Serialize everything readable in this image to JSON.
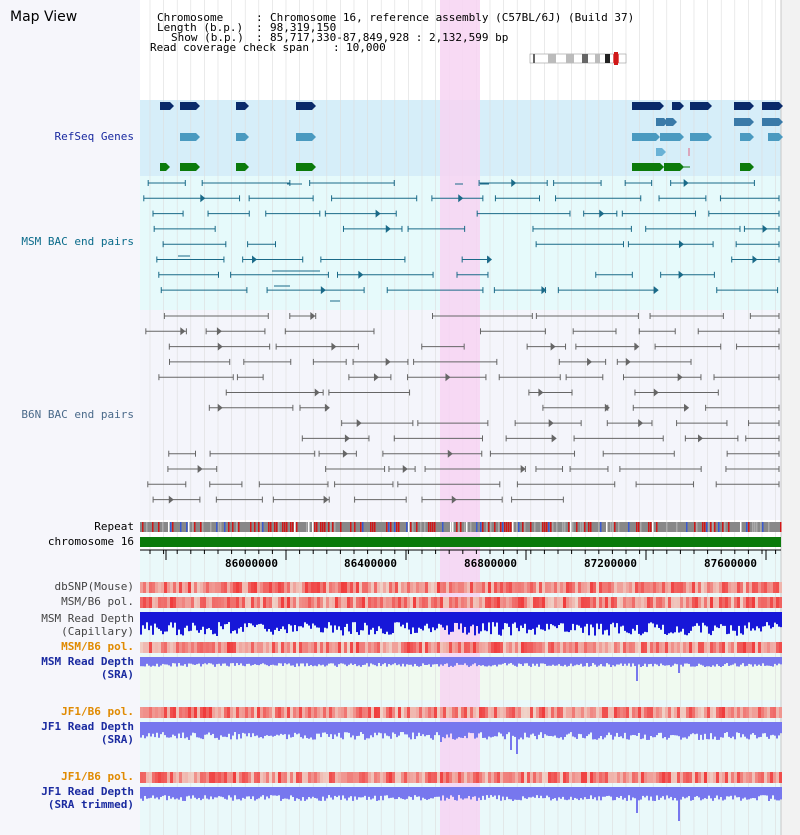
{
  "title": "Map View",
  "info": {
    "chromosome_label": "Chromosome",
    "chromosome_value": "Chromosome 16, reference assembly (C57BL/6J) (Build 37)",
    "length_label": "Length (b.p.)",
    "length_value": "98,319,150",
    "show_label": "Show (b.p.)",
    "show_value": "85,717,330-87,849,928 : 2,132,599 bp",
    "coverage_label": "Read coverage check span",
    "coverage_value": "10,000"
  },
  "tracks": {
    "refseq": "RefSeq Genes",
    "msm_bac": "MSM BAC end pairs",
    "b6n_bac": "B6N BAC end pairs",
    "repeat": "Repeat",
    "chromosome": "chromosome 16",
    "dbsnp": "dbSNP(Mouse)",
    "msm_b6_pol_1": "MSM/B6 pol.",
    "msm_depth_cap_1": "MSM Read Depth",
    "msm_depth_cap_2": "(Capillary)",
    "msm_b6_pol_2": "MSM/B6 pol.",
    "msm_depth_sra_1": "MSM Read Depth",
    "msm_depth_sra_2": "(SRA)",
    "jf1_b6_pol_1": "JF1/B6 pol.",
    "jf1_depth_sra_1": "JF1 Read Depth",
    "jf1_depth_sra_2": "(SRA)",
    "jf1_b6_pol_2": "JF1/B6 pol.",
    "jf1_depth_trim_1": "JF1 Read Depth",
    "jf1_depth_trim_2": "(SRA trimmed)"
  },
  "ruler": {
    "ticks": [
      "86000000",
      "86400000",
      "86800000",
      "87200000",
      "87600000"
    ]
  },
  "colors": {
    "refseq_bg": "#d6eef9",
    "msm_bg": "#e6fafb",
    "b6n_bg": "#f4f5fb",
    "highlight": "#f7d4f2",
    "chrom_green": "#0b7a0b",
    "msm_label": "#0a6b8a",
    "b6n_label": "#4a6a8a",
    "refseq_label": "#1a2aa0",
    "orange_label": "#e08a00",
    "depth_blue": "#1717d8",
    "depth_light": "#7777ee"
  }
}
